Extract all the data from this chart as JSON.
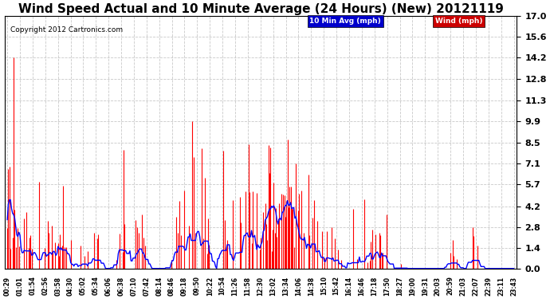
{
  "title": "Wind Speed Actual and 10 Minute Average (24 Hours) (New) 20121119",
  "copyright": "Copyright 2012 Cartronics.com",
  "yticks": [
    0.0,
    1.4,
    2.8,
    4.2,
    5.7,
    7.1,
    8.5,
    9.9,
    11.3,
    12.8,
    14.2,
    15.6,
    17.0
  ],
  "ylim": [
    0.0,
    17.0
  ],
  "wind_color": "#ff0000",
  "avg_color": "#0000ff",
  "background_color": "#ffffff",
  "grid_color": "#bbbbbb",
  "legend_avg_label": "10 Min Avg (mph)",
  "legend_wind_label": "Wind (mph)",
  "legend_avg_bg": "#0000cc",
  "legend_wind_bg": "#cc0000",
  "title_fontsize": 11,
  "xtick_labels": [
    "00:29",
    "01:01",
    "01:54",
    "02:56",
    "03:58",
    "04:30",
    "05:02",
    "05:34",
    "06:06",
    "06:38",
    "07:10",
    "07:42",
    "08:14",
    "08:46",
    "09:18",
    "09:50",
    "10:22",
    "10:54",
    "11:26",
    "11:58",
    "12:30",
    "13:02",
    "13:34",
    "14:06",
    "14:38",
    "15:10",
    "15:42",
    "16:14",
    "16:46",
    "17:18",
    "17:50",
    "18:27",
    "19:00",
    "19:31",
    "20:03",
    "20:59",
    "21:03",
    "22:07",
    "22:39",
    "23:11",
    "23:43"
  ],
  "seed": 12,
  "n_points": 480,
  "spike_seed": 99
}
